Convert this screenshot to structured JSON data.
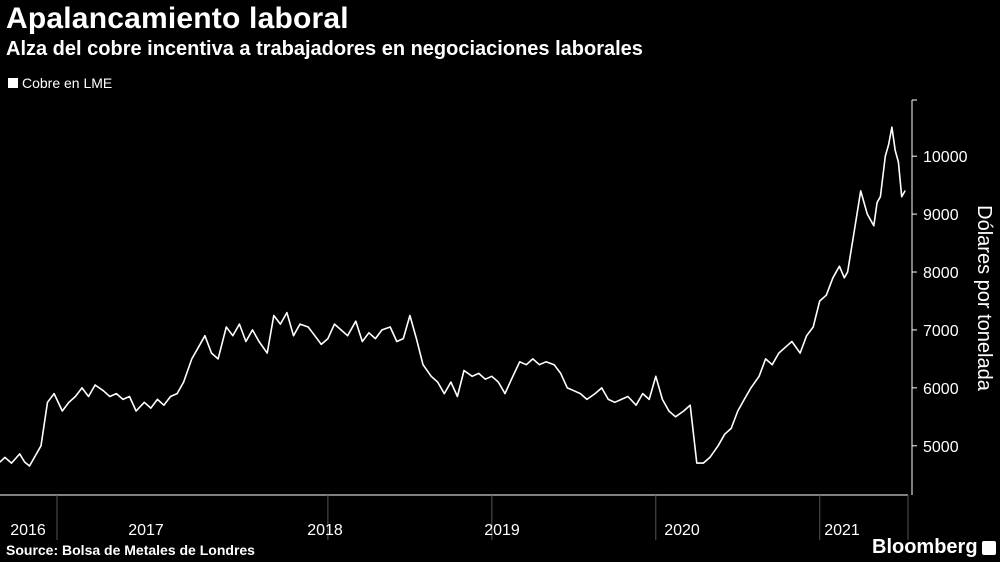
{
  "header": {
    "title": "Apalancamiento laboral",
    "subtitle": "Alza del cobre incentiva a trabajadores en negociaciones laborales"
  },
  "legend": {
    "label": "Cobre en LME"
  },
  "footer": {
    "source": "Source: Bolsa de Metales de Londres",
    "brand": "Bloomberg"
  },
  "colors": {
    "background": "#000000",
    "line": "#ffffff",
    "axis": "#ffffff",
    "separator": "#555555"
  },
  "chart_data": {
    "type": "line",
    "title": "Apalancamiento laboral",
    "ylabel": "Dólares por tonelada",
    "xlabel": "",
    "ylim": [
      4150,
      10970
    ],
    "yticks": [
      5000,
      6000,
      7000,
      8000,
      9000,
      10000
    ],
    "ytick_labels": [
      "5000",
      "6000",
      "7000",
      "8000",
      "9000",
      "10000"
    ],
    "xlim": [
      2016.0,
      2021.52
    ],
    "xtick_labels": [
      "2016",
      "2017",
      "2018",
      "2019",
      "2020",
      "2021"
    ],
    "year_boundaries": [
      2017,
      2018,
      2019,
      2020,
      2021
    ],
    "grid": false,
    "series": [
      {
        "name": "Cobre en LME",
        "x": [
          2016.0,
          2016.03,
          2016.07,
          2016.12,
          2016.15,
          2016.18,
          2016.21,
          2016.25,
          2016.29,
          2016.33,
          2016.38,
          2016.42,
          2016.46,
          2016.5,
          2016.54,
          2016.58,
          2016.63,
          2016.67,
          2016.71,
          2016.75,
          2016.79,
          2016.83,
          2016.88,
          2016.92,
          2016.96,
          2017.0,
          2017.04,
          2017.08,
          2017.12,
          2017.17,
          2017.21,
          2017.25,
          2017.29,
          2017.33,
          2017.38,
          2017.42,
          2017.46,
          2017.5,
          2017.54,
          2017.58,
          2017.63,
          2017.67,
          2017.71,
          2017.75,
          2017.79,
          2017.83,
          2017.88,
          2017.92,
          2017.96,
          2018.0,
          2018.04,
          2018.08,
          2018.12,
          2018.17,
          2018.21,
          2018.25,
          2018.29,
          2018.33,
          2018.38,
          2018.42,
          2018.46,
          2018.5,
          2018.54,
          2018.58,
          2018.63,
          2018.67,
          2018.71,
          2018.75,
          2018.79,
          2018.83,
          2018.88,
          2018.92,
          2018.96,
          2019.0,
          2019.04,
          2019.08,
          2019.12,
          2019.17,
          2019.21,
          2019.25,
          2019.29,
          2019.33,
          2019.38,
          2019.42,
          2019.46,
          2019.5,
          2019.54,
          2019.58,
          2019.63,
          2019.67,
          2019.71,
          2019.75,
          2019.79,
          2019.83,
          2019.88,
          2019.92,
          2019.96,
          2020.0,
          2020.04,
          2020.08,
          2020.12,
          2020.17,
          2020.21,
          2020.25,
          2020.29,
          2020.33,
          2020.38,
          2020.42,
          2020.46,
          2020.5,
          2020.54,
          2020.58,
          2020.63,
          2020.67,
          2020.71,
          2020.75,
          2020.79,
          2020.83,
          2020.88,
          2020.92,
          2020.96,
          2021.0,
          2021.04,
          2021.08,
          2021.12,
          2021.15,
          2021.17,
          2021.21,
          2021.25,
          2021.29,
          2021.33,
          2021.35,
          2021.37,
          2021.4,
          2021.42,
          2021.44,
          2021.46,
          2021.48,
          2021.5,
          2021.52
        ],
        "values": [
          4720,
          4800,
          4700,
          4860,
          4720,
          4650,
          4800,
          5000,
          5750,
          5900,
          5600,
          5750,
          5850,
          6000,
          5850,
          6050,
          5950,
          5850,
          5900,
          5800,
          5850,
          5600,
          5750,
          5650,
          5800,
          5700,
          5850,
          5900,
          6100,
          6500,
          6700,
          6900,
          6600,
          6500,
          7050,
          6900,
          7100,
          6800,
          7000,
          6800,
          6600,
          7250,
          7100,
          7300,
          6900,
          7100,
          7050,
          6900,
          6750,
          6850,
          7100,
          7000,
          6900,
          7150,
          6800,
          6950,
          6850,
          7000,
          7050,
          6800,
          6850,
          7250,
          6850,
          6400,
          6200,
          6100,
          5900,
          6100,
          5850,
          6300,
          6200,
          6250,
          6150,
          6200,
          6100,
          5900,
          6150,
          6450,
          6400,
          6500,
          6400,
          6450,
          6400,
          6250,
          6000,
          5950,
          5900,
          5800,
          5900,
          6000,
          5800,
          5750,
          5800,
          5850,
          5700,
          5900,
          5800,
          6200,
          5800,
          5600,
          5500,
          5600,
          5700,
          4700,
          4700,
          4800,
          5000,
          5200,
          5300,
          5600,
          5800,
          6000,
          6200,
          6500,
          6400,
          6600,
          6700,
          6800,
          6600,
          6900,
          7050,
          7500,
          7600,
          7900,
          8100,
          7900,
          8000,
          8700,
          9400,
          9000,
          8800,
          9200,
          9300,
          10000,
          10200,
          10500,
          10100,
          9900,
          9300,
          9400
        ]
      }
    ]
  }
}
